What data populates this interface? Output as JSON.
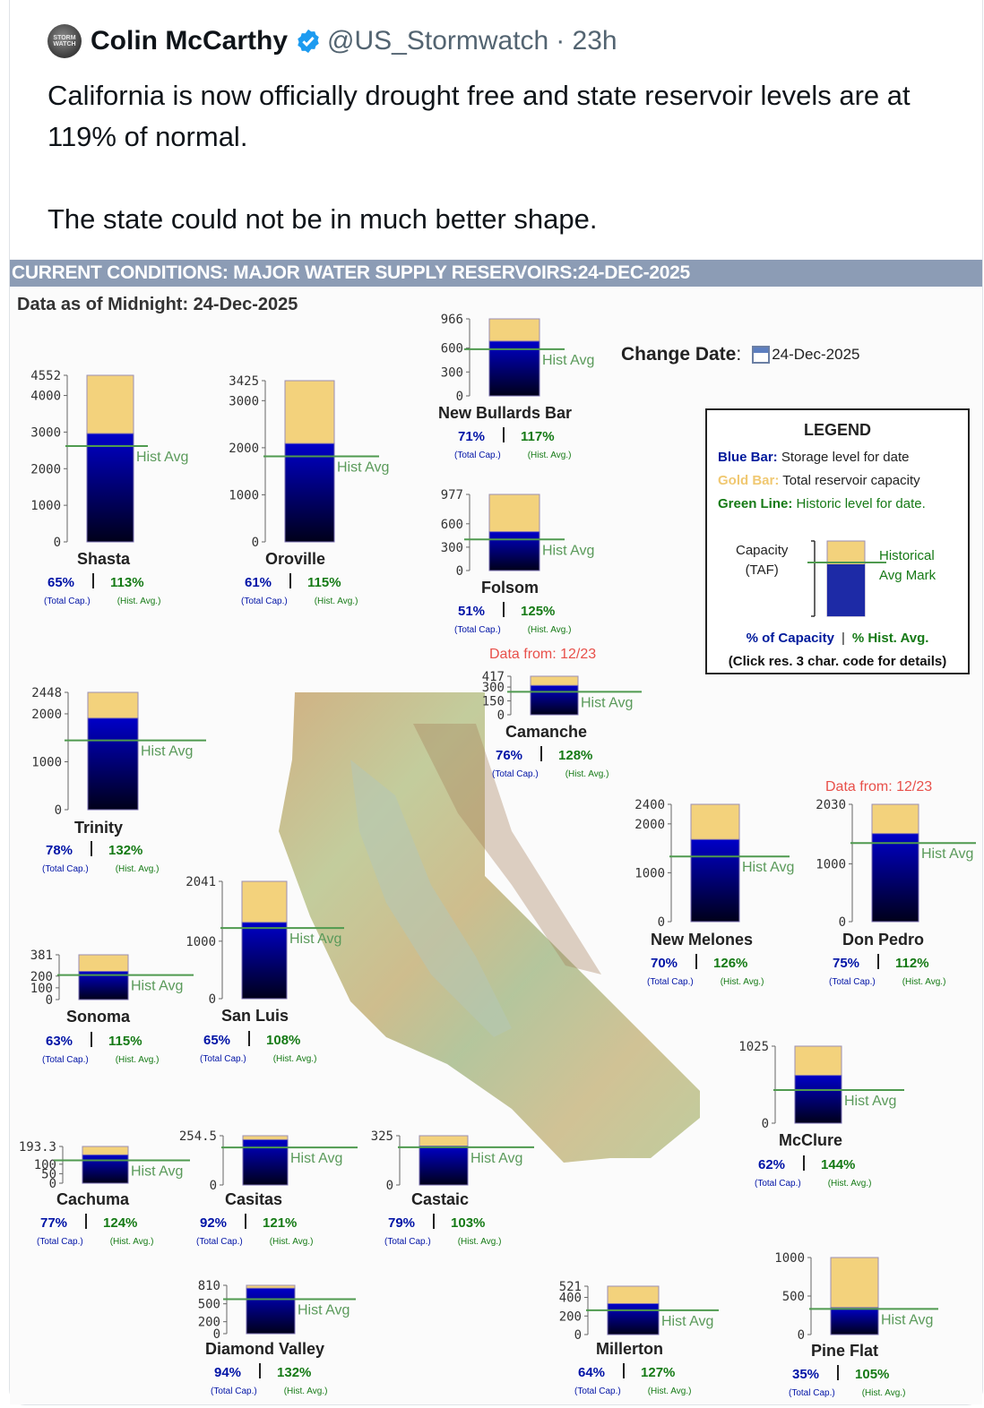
{
  "tweet": {
    "author": "Colin McCarthy",
    "avatar_text": "STORM WATCH",
    "handle": "@US_Stormwatch",
    "time": "· 23h",
    "text_line1": "California is now officially drought free and state reservoir levels are at 119% of normal.",
    "text_line2": "The state could not be in much better shape."
  },
  "chart_header": "CURRENT CONDITIONS: MAJOR WATER SUPPLY RESERVOIRS:24-DEC-2025",
  "as_of": "Data as of Midnight: 24-Dec-2025",
  "change_date": {
    "label": "Change Date",
    "colon": ":",
    "value": "24-Dec-2025"
  },
  "legend": {
    "title": "LEGEND",
    "blue_key": "Blue Bar:",
    "blue_desc": "Storage level for date",
    "gold_key": "Gold Bar:",
    "gold_desc": "Total reservoir capacity",
    "green_key": "Green Line:",
    "green_desc": "Historic level for date.",
    "capacity_label": "Capacity",
    "taf_label": "(TAF)",
    "hist_line1": "Historical",
    "hist_line2": "Avg Mark",
    "pct_capacity": "% of Capacity",
    "pct_sep": "|",
    "pct_hist": "% Hist. Avg.",
    "click_note": "(Click res. 3 char. code for details)"
  },
  "labels": {
    "hist_avg": "Hist Avg",
    "total_cap": "(Total Cap.)",
    "hist_avg_small": "(Hist. Avg.)",
    "separator": "|"
  },
  "colors": {
    "blue_bar_top": "#0000c8",
    "blue_bar_bottom": "#00001a",
    "gold": "#f3d27c",
    "hist_line": "#4f9a4f",
    "header_bg": "#8c9cb5"
  },
  "chart_data": [
    {
      "type": "bar",
      "name": "Shasta",
      "capacity": 4552,
      "storage": 2959,
      "hist_avg": 2618,
      "pct_capacity": "65%",
      "pct_hist": "113%",
      "ticks": [
        "4552",
        "4000",
        "3000",
        "2000",
        "1000",
        "0"
      ]
    },
    {
      "type": "bar",
      "name": "Oroville",
      "capacity": 3425,
      "storage": 2089,
      "hist_avg": 1817,
      "pct_capacity": "61%",
      "pct_hist": "115%",
      "ticks": [
        "3425",
        "3000",
        "2000",
        "1000",
        "0"
      ]
    },
    {
      "type": "bar",
      "name": "New Bullards Bar",
      "capacity": 966,
      "storage": 686,
      "hist_avg": 586,
      "pct_capacity": "71%",
      "pct_hist": "117%",
      "ticks": [
        "966",
        "600",
        "300",
        "0"
      ]
    },
    {
      "type": "bar",
      "name": "Folsom",
      "capacity": 977,
      "storage": 498,
      "hist_avg": 399,
      "pct_capacity": "51%",
      "pct_hist": "125%",
      "ticks": [
        "977",
        "600",
        "300",
        "0"
      ]
    },
    {
      "type": "bar",
      "name": "Camanche",
      "capacity": 417,
      "storage": 317,
      "hist_avg": 248,
      "pct_capacity": "76%",
      "pct_hist": "128%",
      "ticks": [
        "417",
        "300",
        "150",
        "0"
      ],
      "data_from": "Data from: 12/23"
    },
    {
      "type": "bar",
      "name": "Trinity",
      "capacity": 2448,
      "storage": 1909,
      "hist_avg": 1446,
      "pct_capacity": "78%",
      "pct_hist": "132%",
      "ticks": [
        "2448",
        "2000",
        "1000",
        "0"
      ]
    },
    {
      "type": "bar",
      "name": "New Melones",
      "capacity": 2400,
      "storage": 1680,
      "hist_avg": 1333,
      "pct_capacity": "70%",
      "pct_hist": "126%",
      "ticks": [
        "2400",
        "2000",
        "1000",
        "0"
      ]
    },
    {
      "type": "bar",
      "name": "Don Pedro",
      "capacity": 2030,
      "storage": 1523,
      "hist_avg": 1360,
      "pct_capacity": "75%",
      "pct_hist": "112%",
      "ticks": [
        "2030",
        "1000",
        "0"
      ],
      "data_from": "Data from: 12/23"
    },
    {
      "type": "bar",
      "name": "Sonoma",
      "capacity": 381,
      "storage": 240,
      "hist_avg": 209,
      "pct_capacity": "63%",
      "pct_hist": "115%",
      "ticks": [
        "381",
        "200",
        "100",
        "0"
      ]
    },
    {
      "type": "bar",
      "name": "San Luis",
      "capacity": 2041,
      "storage": 1327,
      "hist_avg": 1229,
      "pct_capacity": "65%",
      "pct_hist": "108%",
      "ticks": [
        "2041",
        "1000",
        "0"
      ]
    },
    {
      "type": "bar",
      "name": "McClure",
      "capacity": 1025,
      "storage": 636,
      "hist_avg": 441,
      "pct_capacity": "62%",
      "pct_hist": "144%",
      "ticks": [
        "1025",
        "0"
      ]
    },
    {
      "type": "bar",
      "name": "Cachuma",
      "capacity": 193.3,
      "storage": 149,
      "hist_avg": 120,
      "pct_capacity": "77%",
      "pct_hist": "124%",
      "ticks": [
        "193.3",
        "100",
        "50",
        "0"
      ]
    },
    {
      "type": "bar",
      "name": "Casitas",
      "capacity": 254.5,
      "storage": 234,
      "hist_avg": 194,
      "pct_capacity": "92%",
      "pct_hist": "121%",
      "ticks": [
        "254.5",
        "0"
      ]
    },
    {
      "type": "bar",
      "name": "Castaic",
      "capacity": 325,
      "storage": 257,
      "hist_avg": 249,
      "pct_capacity": "79%",
      "pct_hist": "103%",
      "ticks": [
        "325",
        "0"
      ]
    },
    {
      "type": "bar",
      "name": "Diamond Valley",
      "capacity": 810,
      "storage": 761,
      "hist_avg": 577,
      "pct_capacity": "94%",
      "pct_hist": "132%",
      "ticks": [
        "810",
        "500",
        "200",
        "0"
      ]
    },
    {
      "type": "bar",
      "name": "Millerton",
      "capacity": 521,
      "storage": 333,
      "hist_avg": 262,
      "pct_capacity": "64%",
      "pct_hist": "127%",
      "ticks": [
        "521",
        "400",
        "200",
        "0"
      ]
    },
    {
      "type": "bar",
      "name": "Pine Flat",
      "capacity": 1000,
      "storage": 350,
      "hist_avg": 333,
      "pct_capacity": "35%",
      "pct_hist": "105%",
      "ticks": [
        "1000",
        "500",
        "0"
      ]
    }
  ]
}
